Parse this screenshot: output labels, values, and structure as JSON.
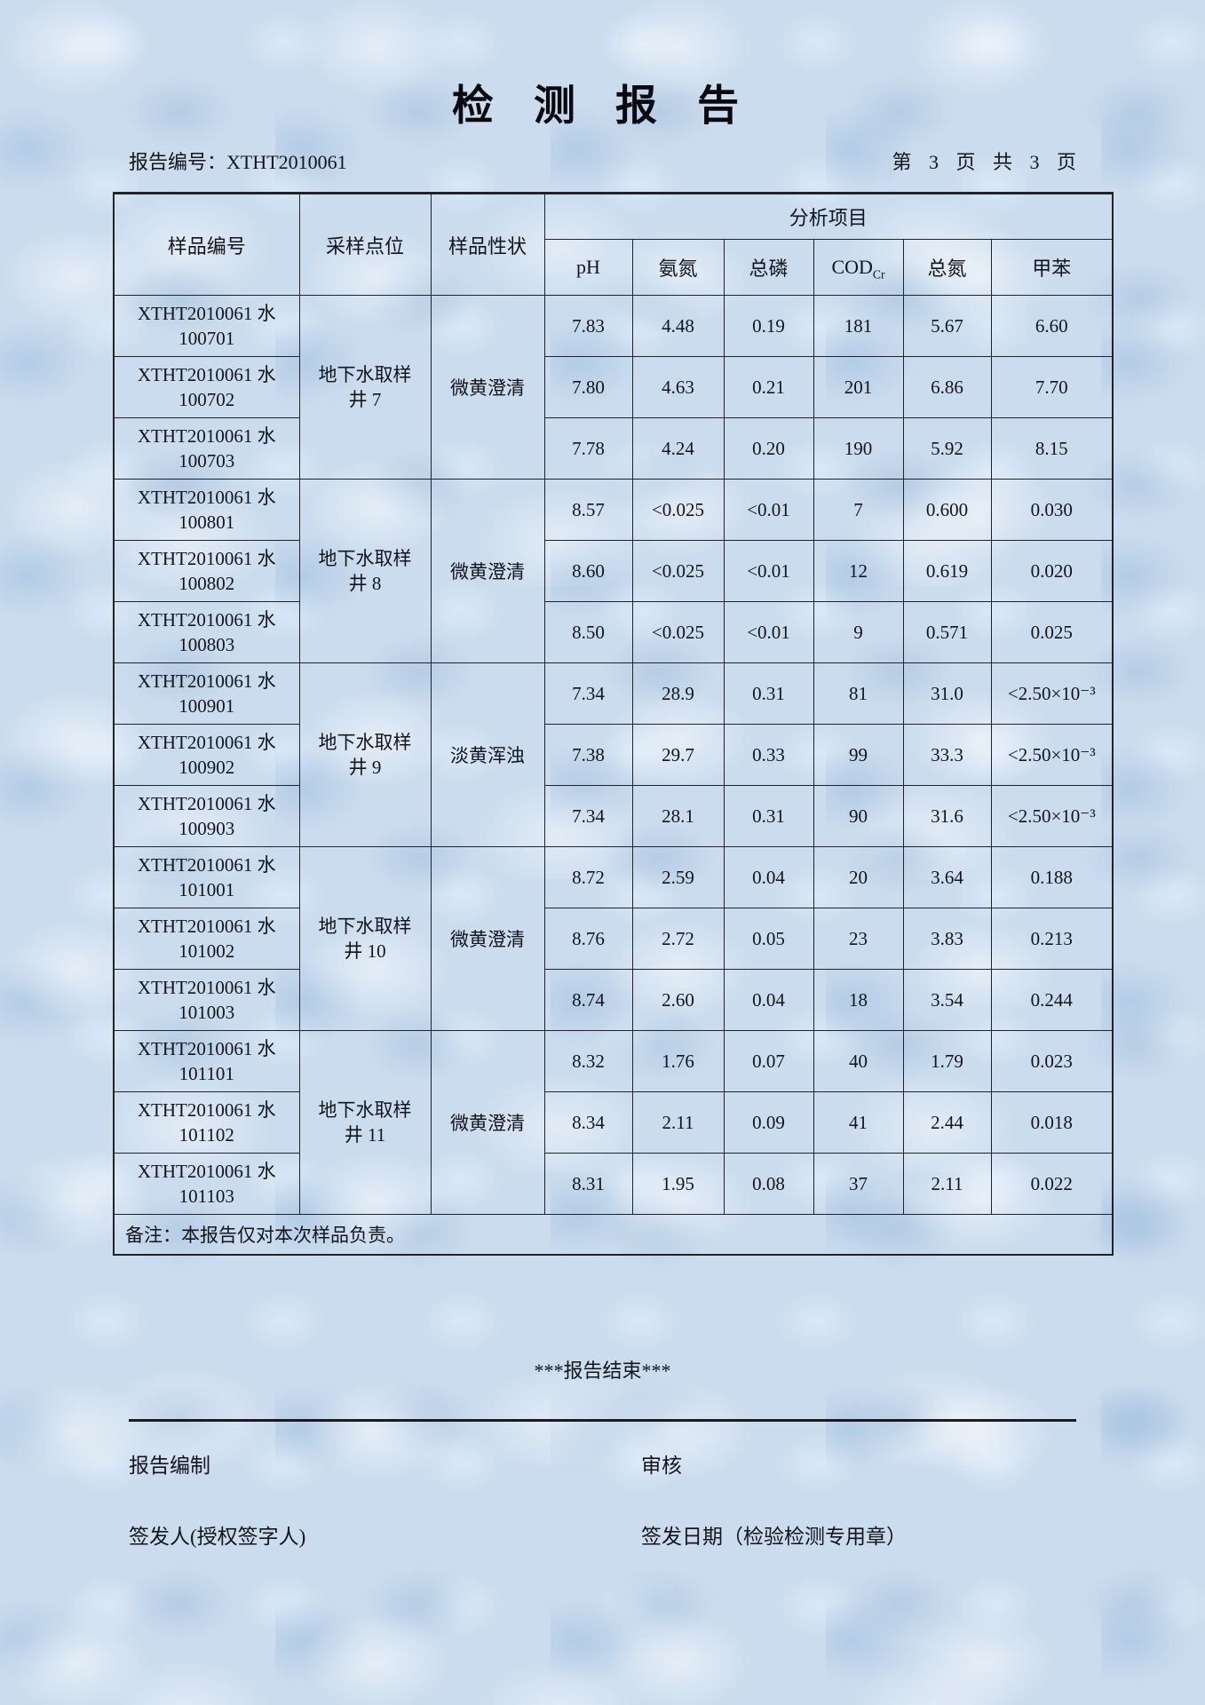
{
  "page": {
    "title": "检 测 报 告",
    "report_no_label": "报告编号：",
    "report_no": "XTHT2010061",
    "page_info": "第 3 页 共 3 页"
  },
  "table": {
    "header": {
      "sample_id": "样品编号",
      "sampling_point": "采样点位",
      "sample_property": "样品性状",
      "analysis_items": "分析项目"
    },
    "analysis_columns": [
      {
        "label": "pH",
        "sub": ""
      },
      {
        "label": "氨氮",
        "sub": ""
      },
      {
        "label": "总磷",
        "sub": ""
      },
      {
        "label": "COD",
        "sub": "Cr"
      },
      {
        "label": "总氮",
        "sub": ""
      },
      {
        "label": "甲苯",
        "sub": ""
      }
    ],
    "groups": [
      {
        "sampling_point": "地下水取样\n井 7",
        "property": "微黄澄清",
        "rows": [
          {
            "id": "XTHT2010061 水\n100701",
            "values": [
              "7.83",
              "4.48",
              "0.19",
              "181",
              "5.67",
              "6.60"
            ]
          },
          {
            "id": "XTHT2010061 水\n100702",
            "values": [
              "7.80",
              "4.63",
              "0.21",
              "201",
              "6.86",
              "7.70"
            ]
          },
          {
            "id": "XTHT2010061 水\n100703",
            "values": [
              "7.78",
              "4.24",
              "0.20",
              "190",
              "5.92",
              "8.15"
            ]
          }
        ]
      },
      {
        "sampling_point": "地下水取样\n井 8",
        "property": "微黄澄清",
        "rows": [
          {
            "id": "XTHT2010061 水\n100801",
            "values": [
              "8.57",
              "<0.025",
              "<0.01",
              "7",
              "0.600",
              "0.030"
            ]
          },
          {
            "id": "XTHT2010061 水\n100802",
            "values": [
              "8.60",
              "<0.025",
              "<0.01",
              "12",
              "0.619",
              "0.020"
            ]
          },
          {
            "id": "XTHT2010061 水\n100803",
            "values": [
              "8.50",
              "<0.025",
              "<0.01",
              "9",
              "0.571",
              "0.025"
            ]
          }
        ]
      },
      {
        "sampling_point": "地下水取样\n井 9",
        "property": "淡黄浑浊",
        "rows": [
          {
            "id": "XTHT2010061 水\n100901",
            "values": [
              "7.34",
              "28.9",
              "0.31",
              "81",
              "31.0",
              "<2.50×10⁻³"
            ]
          },
          {
            "id": "XTHT2010061 水\n100902",
            "values": [
              "7.38",
              "29.7",
              "0.33",
              "99",
              "33.3",
              "<2.50×10⁻³"
            ]
          },
          {
            "id": "XTHT2010061 水\n100903",
            "values": [
              "7.34",
              "28.1",
              "0.31",
              "90",
              "31.6",
              "<2.50×10⁻³"
            ]
          }
        ]
      },
      {
        "sampling_point": "地下水取样\n井 10",
        "property": "微黄澄清",
        "rows": [
          {
            "id": "XTHT2010061 水\n101001",
            "values": [
              "8.72",
              "2.59",
              "0.04",
              "20",
              "3.64",
              "0.188"
            ]
          },
          {
            "id": "XTHT2010061 水\n101002",
            "values": [
              "8.76",
              "2.72",
              "0.05",
              "23",
              "3.83",
              "0.213"
            ]
          },
          {
            "id": "XTHT2010061 水\n101003",
            "values": [
              "8.74",
              "2.60",
              "0.04",
              "18",
              "3.54",
              "0.244"
            ]
          }
        ]
      },
      {
        "sampling_point": "地下水取样\n井 11",
        "property": "微黄澄清",
        "rows": [
          {
            "id": "XTHT2010061 水\n101101",
            "values": [
              "8.32",
              "1.76",
              "0.07",
              "40",
              "1.79",
              "0.023"
            ]
          },
          {
            "id": "XTHT2010061 水\n101102",
            "values": [
              "8.34",
              "2.11",
              "0.09",
              "41",
              "2.44",
              "0.018"
            ]
          },
          {
            "id": "XTHT2010061 水\n101103",
            "values": [
              "8.31",
              "1.95",
              "0.08",
              "37",
              "2.11",
              "0.022"
            ]
          }
        ]
      }
    ],
    "note": "备注：本报告仅对本次样品负责。"
  },
  "footer": {
    "end_mark": "***报告结束***",
    "prepared_label": "报告编制",
    "review_label": "审核",
    "signer_label": "签发人(授权签字人)",
    "issue_date_label": "签发日期（检验检测专用章）"
  }
}
